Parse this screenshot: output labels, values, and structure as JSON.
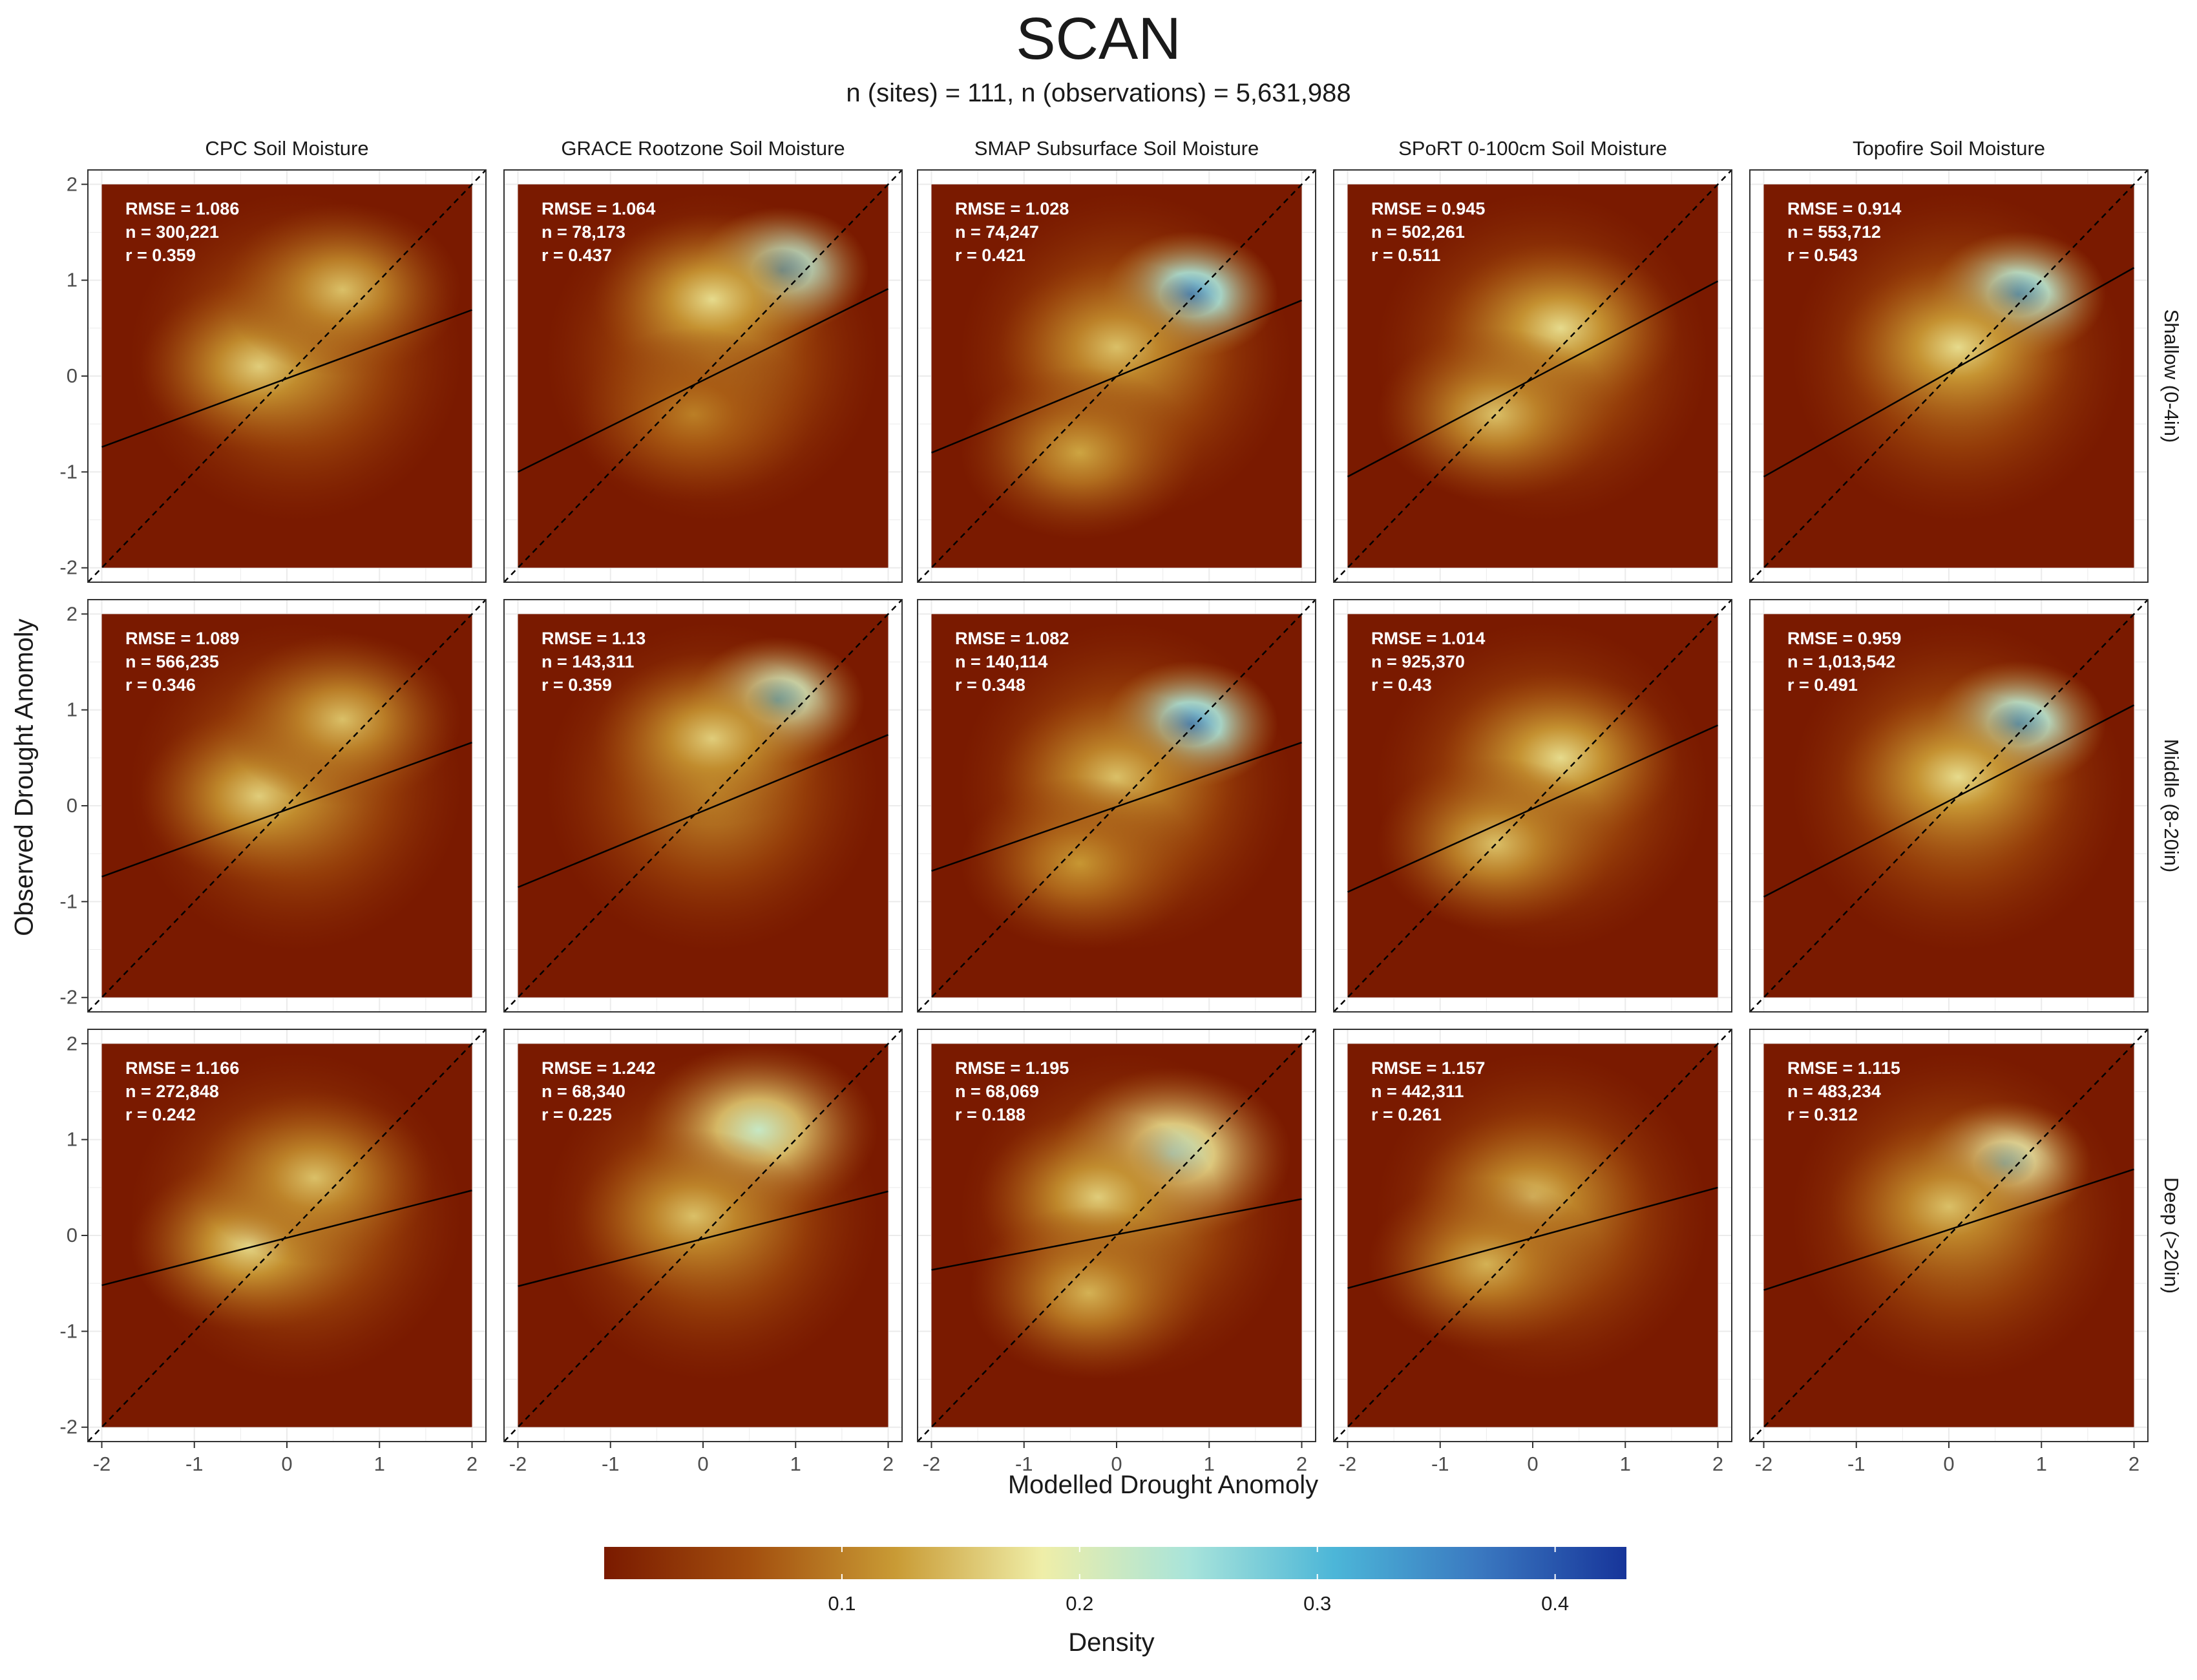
{
  "title": "SCAN",
  "subtitle": "n (sites) = 111, n (observations) = 5,631,988",
  "xlabel": "Modelled Drought Anomoly",
  "ylabel": "Observed Drought Anomoly",
  "legend": {
    "title": "Density",
    "ticks": [
      "0.1",
      "0.2",
      "0.3",
      "0.4"
    ],
    "tick_values": [
      0.1,
      0.2,
      0.3,
      0.4
    ],
    "range": [
      0,
      0.43
    ],
    "colors": [
      "#7a1a00",
      "#a34f0e",
      "#c99b35",
      "#efeea8",
      "#a9e4da",
      "#4cb6d8",
      "#3a78c0",
      "#17359a"
    ]
  },
  "chart_data": {
    "type": "heatmap",
    "description_layers": [
      "density heatmap",
      "1:1 dashed line",
      "fitted regression line"
    ],
    "xlim": [
      -2.15,
      2.15
    ],
    "ylim": [
      -2.15,
      2.15
    ],
    "x_ticks": [
      -2,
      -1,
      0,
      1,
      2
    ],
    "y_ticks": [
      -2,
      -1,
      0,
      1,
      2
    ],
    "x_tick_labels": [
      "-2",
      "-1",
      "0",
      "1",
      "2"
    ],
    "y_tick_labels": [
      "-2",
      "-1",
      "0",
      "1",
      "2"
    ],
    "columns": [
      "CPC Soil Moisture",
      "GRACE Rootzone Soil Moisture",
      "SMAP Subsurface Soil Moisture",
      "SPoRT 0-100cm Soil Moisture",
      "Topofire Soil Moisture"
    ],
    "rows": [
      "Shallow (0-4in)",
      "Middle (8-20in)",
      "Deep (>20in)"
    ],
    "panels": [
      {
        "row": 0,
        "col": 0,
        "rmse": "1.086",
        "n": "300,221",
        "r": "0.359",
        "fit": [
          -0.74,
          0.69
        ],
        "hotspots": [
          {
            "x": -0.3,
            "y": 0.1,
            "d": 0.16
          },
          {
            "x": 0.6,
            "y": 0.9,
            "d": 0.15
          }
        ]
      },
      {
        "row": 0,
        "col": 1,
        "rmse": "1.064",
        "n": "78,173",
        "r": "0.437",
        "fit": [
          -1.0,
          0.91
        ],
        "hotspots": [
          {
            "x": 0.85,
            "y": 1.1,
            "d": 0.33
          },
          {
            "x": 0.1,
            "y": 0.8,
            "d": 0.17
          },
          {
            "x": -0.1,
            "y": -0.4,
            "d": 0.1
          }
        ]
      },
      {
        "row": 0,
        "col": 2,
        "rmse": "1.028",
        "n": "74,247",
        "r": "0.421",
        "fit": [
          -0.8,
          0.79
        ],
        "hotspots": [
          {
            "x": 0.8,
            "y": 0.85,
            "d": 0.35
          },
          {
            "x": 0.0,
            "y": 0.3,
            "d": 0.15
          },
          {
            "x": -0.4,
            "y": -0.8,
            "d": 0.13
          }
        ]
      },
      {
        "row": 0,
        "col": 3,
        "rmse": "0.945",
        "n": "502,261",
        "r": "0.511",
        "fit": [
          -1.05,
          0.99
        ],
        "hotspots": [
          {
            "x": 0.3,
            "y": 0.5,
            "d": 0.17
          },
          {
            "x": -0.4,
            "y": -0.4,
            "d": 0.15
          }
        ]
      },
      {
        "row": 0,
        "col": 4,
        "rmse": "0.914",
        "n": "553,712",
        "r": "0.543",
        "fit": [
          -1.05,
          1.13
        ],
        "hotspots": [
          {
            "x": 0.75,
            "y": 0.85,
            "d": 0.33
          },
          {
            "x": 0.1,
            "y": 0.3,
            "d": 0.17
          }
        ]
      },
      {
        "row": 1,
        "col": 0,
        "rmse": "1.089",
        "n": "566,235",
        "r": "0.346",
        "fit": [
          -0.74,
          0.66
        ],
        "hotspots": [
          {
            "x": -0.3,
            "y": 0.1,
            "d": 0.16
          },
          {
            "x": 0.6,
            "y": 0.9,
            "d": 0.15
          }
        ]
      },
      {
        "row": 1,
        "col": 1,
        "rmse": "1.13",
        "n": "143,311",
        "r": "0.359",
        "fit": [
          -0.85,
          0.74
        ],
        "hotspots": [
          {
            "x": 0.8,
            "y": 1.1,
            "d": 0.3
          },
          {
            "x": 0.1,
            "y": 0.7,
            "d": 0.16
          }
        ]
      },
      {
        "row": 1,
        "col": 2,
        "rmse": "1.082",
        "n": "140,114",
        "r": "0.348",
        "fit": [
          -0.68,
          0.66
        ],
        "hotspots": [
          {
            "x": 0.8,
            "y": 0.85,
            "d": 0.35
          },
          {
            "x": 0.0,
            "y": 0.3,
            "d": 0.15
          },
          {
            "x": -0.4,
            "y": -0.6,
            "d": 0.12
          }
        ]
      },
      {
        "row": 1,
        "col": 3,
        "rmse": "1.014",
        "n": "925,370",
        "r": "0.43",
        "fit": [
          -0.9,
          0.84
        ],
        "hotspots": [
          {
            "x": 0.3,
            "y": 0.5,
            "d": 0.17
          },
          {
            "x": -0.4,
            "y": -0.4,
            "d": 0.15
          }
        ]
      },
      {
        "row": 1,
        "col": 4,
        "rmse": "0.959",
        "n": "1,013,542",
        "r": "0.491",
        "fit": [
          -0.95,
          1.05
        ],
        "hotspots": [
          {
            "x": 0.75,
            "y": 0.85,
            "d": 0.33
          },
          {
            "x": 0.1,
            "y": 0.3,
            "d": 0.17
          }
        ]
      },
      {
        "row": 2,
        "col": 0,
        "rmse": "1.166",
        "n": "272,848",
        "r": "0.242",
        "fit": [
          -0.52,
          0.47
        ],
        "hotspots": [
          {
            "x": -0.4,
            "y": -0.1,
            "d": 0.17
          },
          {
            "x": 0.3,
            "y": 0.6,
            "d": 0.15
          }
        ]
      },
      {
        "row": 2,
        "col": 1,
        "rmse": "1.242",
        "n": "68,340",
        "r": "0.225",
        "fit": [
          -0.53,
          0.46
        ],
        "hotspots": [
          {
            "x": 0.6,
            "y": 1.1,
            "d": 0.22
          },
          {
            "x": -0.1,
            "y": 0.2,
            "d": 0.15
          }
        ]
      },
      {
        "row": 2,
        "col": 2,
        "rmse": "1.195",
        "n": "68,069",
        "r": "0.188",
        "fit": [
          -0.36,
          0.38
        ],
        "hotspots": [
          {
            "x": 0.6,
            "y": 0.85,
            "d": 0.24
          },
          {
            "x": -0.2,
            "y": 0.4,
            "d": 0.16
          },
          {
            "x": -0.3,
            "y": -0.6,
            "d": 0.14
          }
        ]
      },
      {
        "row": 2,
        "col": 3,
        "rmse": "1.157",
        "n": "442,311",
        "r": "0.261",
        "fit": [
          -0.55,
          0.5
        ],
        "hotspots": [
          {
            "x": 0.0,
            "y": 0.4,
            "d": 0.15
          },
          {
            "x": -0.5,
            "y": -0.3,
            "d": 0.14
          }
        ]
      },
      {
        "row": 2,
        "col": 4,
        "rmse": "1.115",
        "n": "483,234",
        "r": "0.312",
        "fit": [
          -0.57,
          0.69
        ],
        "hotspots": [
          {
            "x": 0.6,
            "y": 0.75,
            "d": 0.27
          },
          {
            "x": 0.0,
            "y": 0.3,
            "d": 0.15
          }
        ]
      }
    ]
  }
}
